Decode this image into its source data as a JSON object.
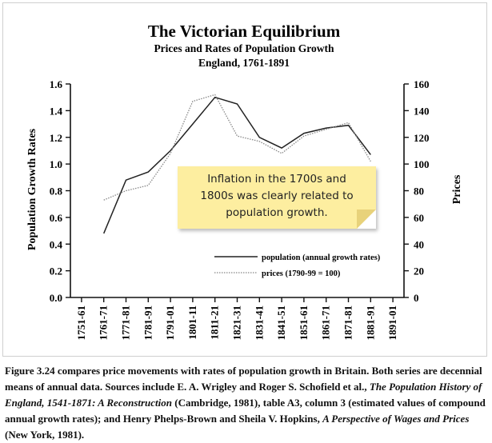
{
  "chart_data": {
    "type": "line",
    "title": "The Victorian Equilibrium",
    "subtitle_line1": "Prices and Rates of Population Growth",
    "subtitle_line2": "England, 1761-1891",
    "categories": [
      "1751-61",
      "1761-71",
      "1771-81",
      "1781-91",
      "1791-01",
      "1801-11",
      "1811-21",
      "1821-31",
      "1831-41",
      "1841-51",
      "1851-61",
      "1861-71",
      "1871-81",
      "1881-91",
      "1891-01"
    ],
    "ylabel_left": "Population Growth Rates",
    "ylabel_right": "Prices",
    "ylim_left": [
      0,
      1.6
    ],
    "ylim_right": [
      0,
      160
    ],
    "yticks_left": [
      "0.0",
      "0.2",
      "0.4",
      "0.6",
      "0.8",
      "1.0",
      "1.2",
      "1.4",
      "1.6"
    ],
    "yticks_right": [
      "0",
      "20",
      "40",
      "60",
      "80",
      "100",
      "120",
      "140",
      "160"
    ],
    "series": [
      {
        "name": "population (annual growth rates)",
        "axis": "left",
        "style": "solid",
        "values": [
          null,
          0.48,
          0.88,
          0.94,
          1.1,
          1.3,
          1.5,
          1.45,
          1.2,
          1.12,
          1.23,
          1.27,
          1.29,
          1.07,
          null
        ]
      },
      {
        "name": "prices (1790-99 = 100)",
        "axis": "right",
        "style": "dotted",
        "values": [
          null,
          73,
          80,
          84,
          108,
          147,
          152,
          121,
          117,
          108,
          121,
          126,
          131,
          102,
          null
        ]
      }
    ]
  },
  "note": {
    "line1": "Inflation in the 1700s and",
    "line2": "1800s was clearly related to",
    "line3": "population growth."
  },
  "caption": {
    "part1": "Figure 3.24 compares price movements with rates of population growth in Britain. Both series are decennial means of annual data. Sources include E. A. Wrigley and Roger S. Schofield et al., ",
    "book1": "The Population History of England, 1541-1871: A Reconstruction",
    "part2": " (Cambridge, 1981), table A3, column 3 (estimated values of compound annual growth rates); and Henry Phelps-Brown and Sheila V. Hopkins, ",
    "book2": "A Perspective of Wages and Prices",
    "part3": " (New York, 1981)."
  },
  "colors": {
    "note_bg": "#fdeea0",
    "line": "#222222",
    "dotted": "#888888"
  }
}
